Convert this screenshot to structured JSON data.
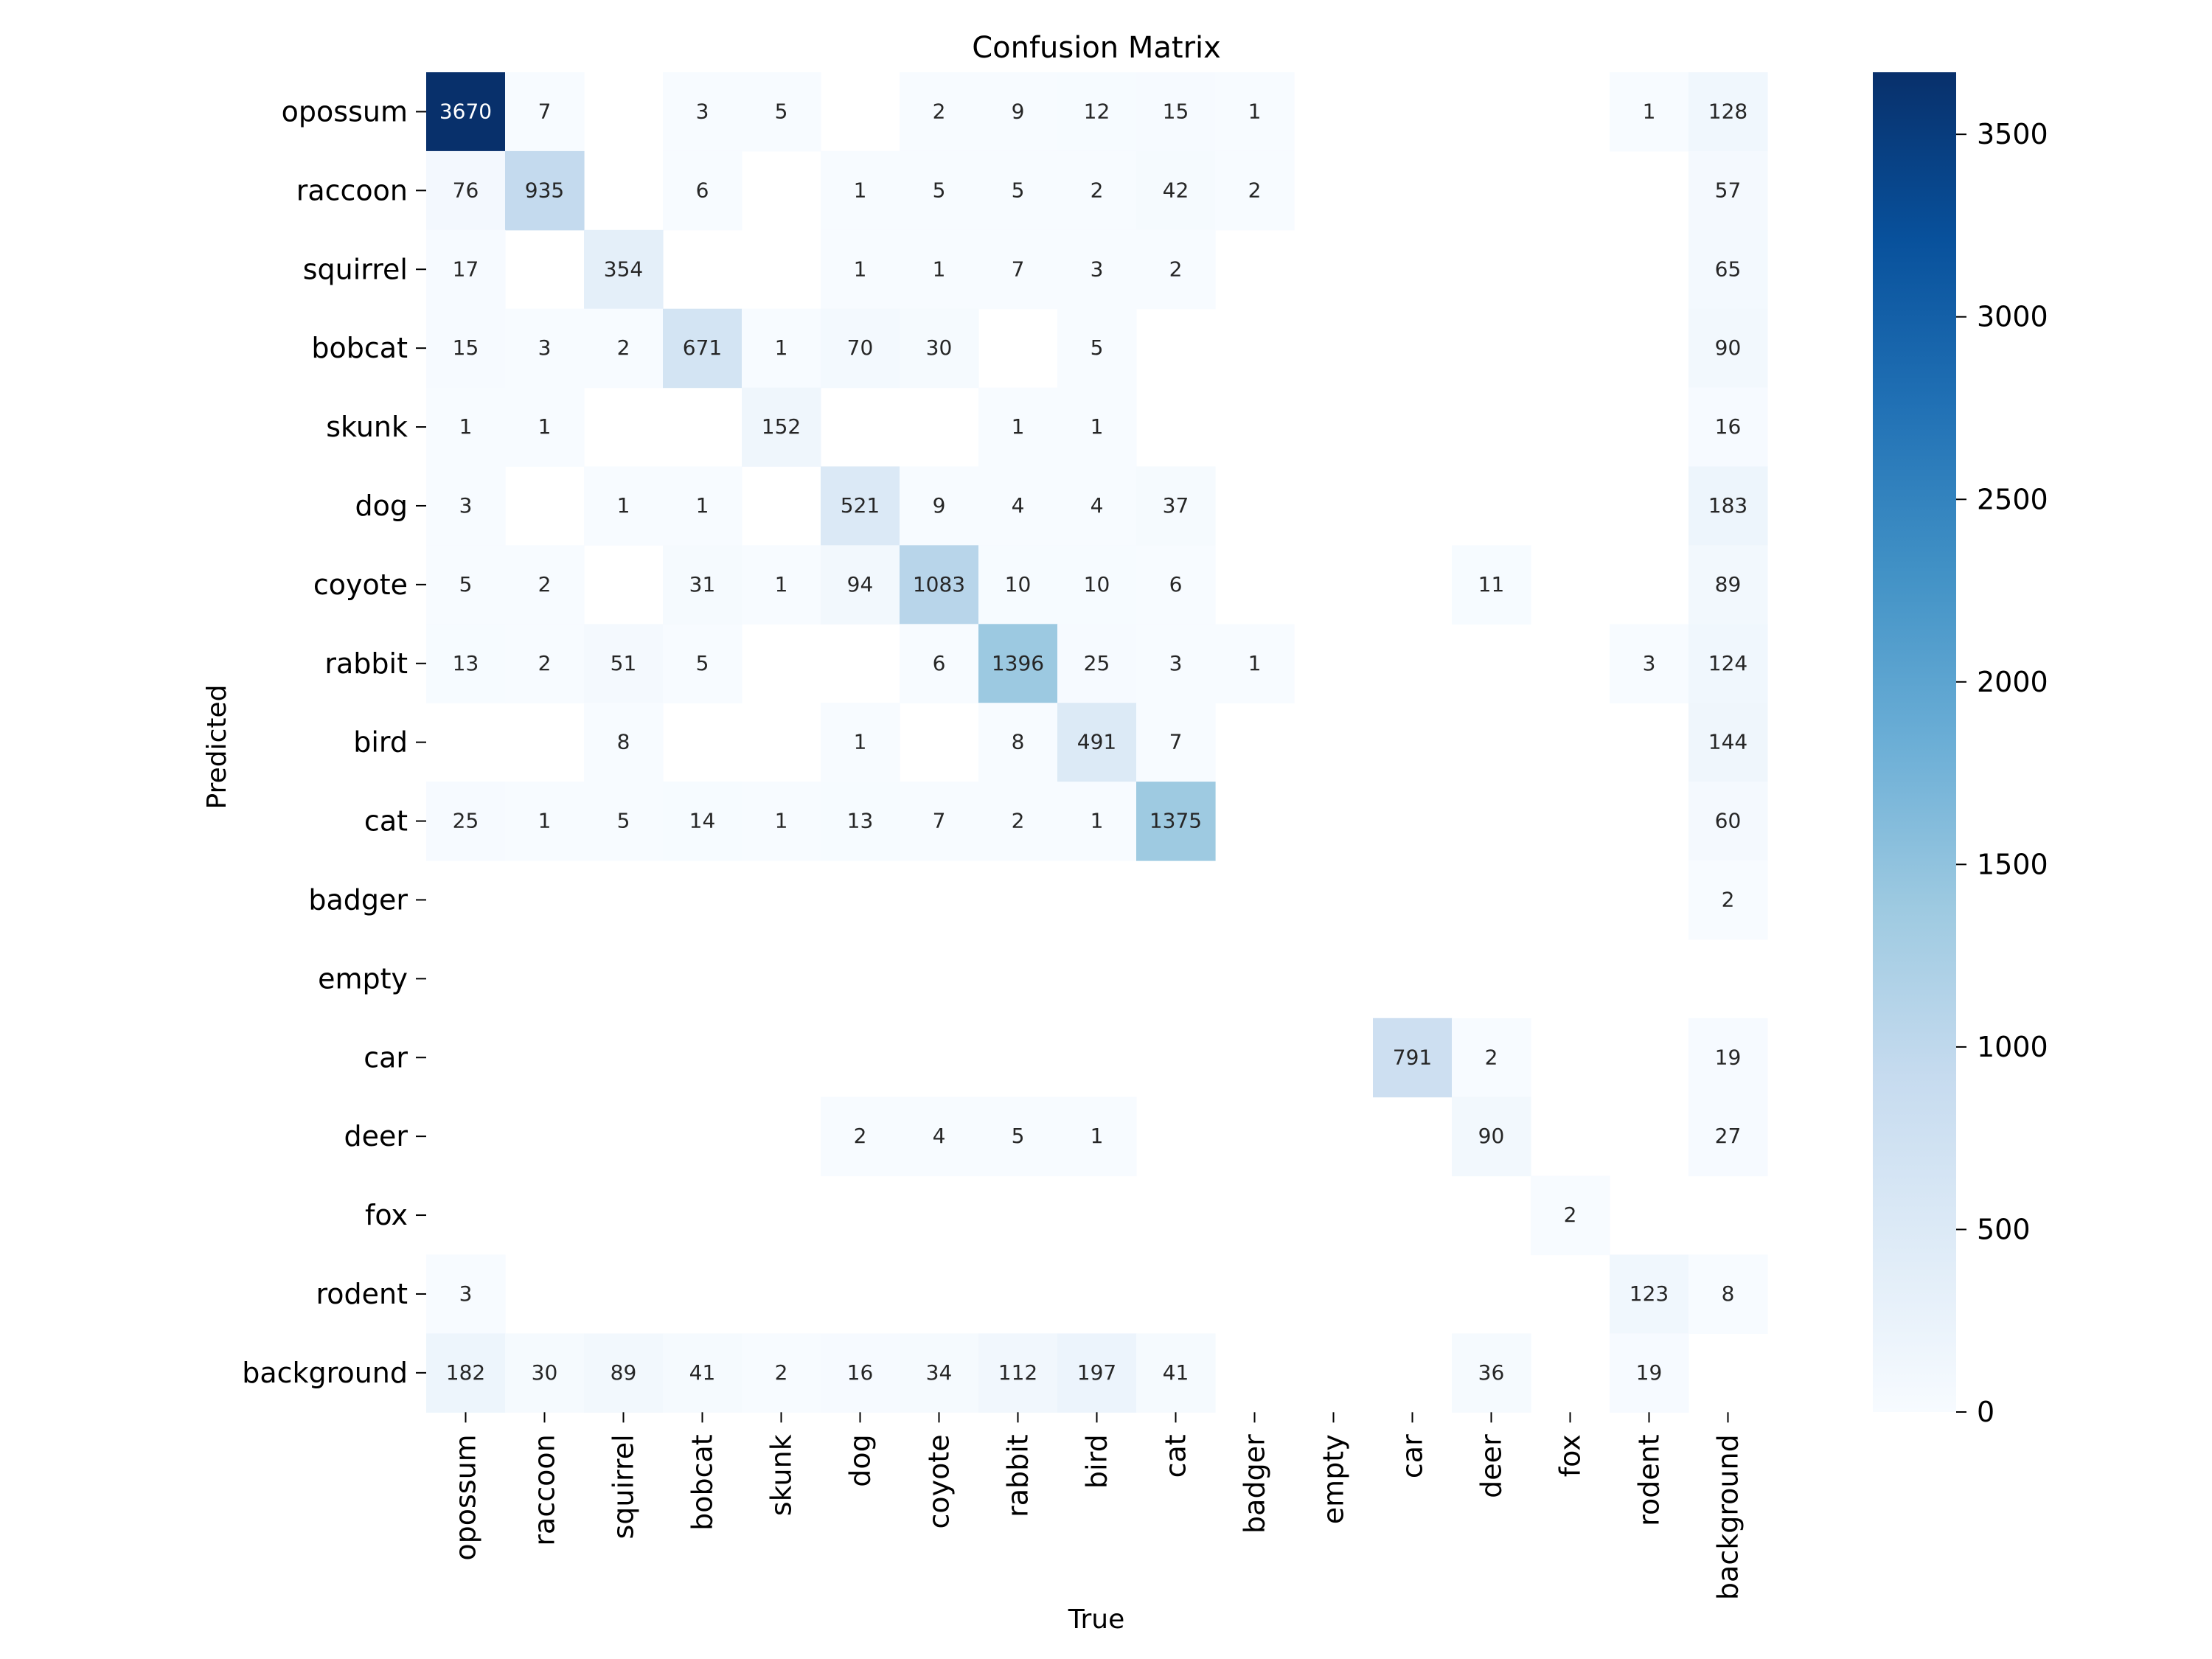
{
  "chart_data": {
    "type": "heatmap",
    "title": "Confusion Matrix",
    "xlabel": "True",
    "ylabel": "Predicted",
    "x_categories": [
      "opossum",
      "raccoon",
      "squirrel",
      "bobcat",
      "skunk",
      "dog",
      "coyote",
      "rabbit",
      "bird",
      "cat",
      "badger",
      "empty",
      "car",
      "deer",
      "fox",
      "rodent",
      "background"
    ],
    "y_categories": [
      "opossum",
      "raccoon",
      "squirrel",
      "bobcat",
      "skunk",
      "dog",
      "coyote",
      "rabbit",
      "bird",
      "cat",
      "badger",
      "empty",
      "car",
      "deer",
      "fox",
      "rodent",
      "background"
    ],
    "values": [
      [
        3670,
        7,
        null,
        3,
        5,
        null,
        2,
        9,
        12,
        15,
        1,
        null,
        null,
        null,
        null,
        1,
        128
      ],
      [
        76,
        935,
        null,
        6,
        null,
        1,
        5,
        5,
        2,
        42,
        2,
        null,
        null,
        null,
        null,
        null,
        57
      ],
      [
        17,
        null,
        354,
        null,
        null,
        1,
        1,
        7,
        3,
        2,
        null,
        null,
        null,
        null,
        null,
        null,
        65
      ],
      [
        15,
        3,
        2,
        671,
        1,
        70,
        30,
        null,
        5,
        null,
        null,
        null,
        null,
        null,
        null,
        null,
        90
      ],
      [
        1,
        1,
        null,
        null,
        152,
        null,
        null,
        1,
        1,
        null,
        null,
        null,
        null,
        null,
        null,
        null,
        16
      ],
      [
        3,
        null,
        1,
        1,
        null,
        521,
        9,
        4,
        4,
        37,
        null,
        null,
        null,
        null,
        null,
        null,
        183
      ],
      [
        5,
        2,
        null,
        31,
        1,
        94,
        1083,
        10,
        10,
        6,
        null,
        null,
        null,
        11,
        null,
        null,
        89
      ],
      [
        13,
        2,
        51,
        5,
        null,
        null,
        6,
        1396,
        25,
        3,
        1,
        null,
        null,
        null,
        null,
        3,
        124
      ],
      [
        null,
        null,
        8,
        null,
        null,
        1,
        null,
        8,
        491,
        7,
        null,
        null,
        null,
        null,
        null,
        null,
        144
      ],
      [
        25,
        1,
        5,
        14,
        1,
        13,
        7,
        2,
        1,
        1375,
        null,
        null,
        null,
        null,
        null,
        null,
        60
      ],
      [
        null,
        null,
        null,
        null,
        null,
        null,
        null,
        null,
        null,
        null,
        null,
        null,
        null,
        null,
        null,
        null,
        2
      ],
      [
        null,
        null,
        null,
        null,
        null,
        null,
        null,
        null,
        null,
        null,
        null,
        null,
        null,
        null,
        null,
        null,
        null
      ],
      [
        null,
        null,
        null,
        null,
        null,
        null,
        null,
        null,
        null,
        null,
        null,
        null,
        791,
        2,
        null,
        null,
        19
      ],
      [
        null,
        null,
        null,
        null,
        null,
        2,
        4,
        5,
        1,
        null,
        null,
        null,
        null,
        90,
        null,
        null,
        27
      ],
      [
        null,
        null,
        null,
        null,
        null,
        null,
        null,
        null,
        null,
        null,
        null,
        null,
        null,
        null,
        2,
        null,
        null
      ],
      [
        3,
        null,
        null,
        null,
        null,
        null,
        null,
        null,
        null,
        null,
        null,
        null,
        null,
        null,
        null,
        123,
        8
      ],
      [
        182,
        30,
        89,
        41,
        2,
        16,
        34,
        112,
        197,
        41,
        null,
        null,
        null,
        36,
        null,
        19,
        null
      ]
    ],
    "colorbar": {
      "range": [
        0,
        3670
      ],
      "ticks": [
        0,
        500,
        1000,
        1500,
        2000,
        2500,
        3000,
        3500
      ],
      "colormap": "Blues",
      "colors": [
        "#f7fbff",
        "#deebf7",
        "#c6dbef",
        "#9ecae1",
        "#6baed6",
        "#4292c6",
        "#2171b5",
        "#08519c",
        "#08306b"
      ]
    },
    "grid": false,
    "empty_cells": "blank"
  }
}
